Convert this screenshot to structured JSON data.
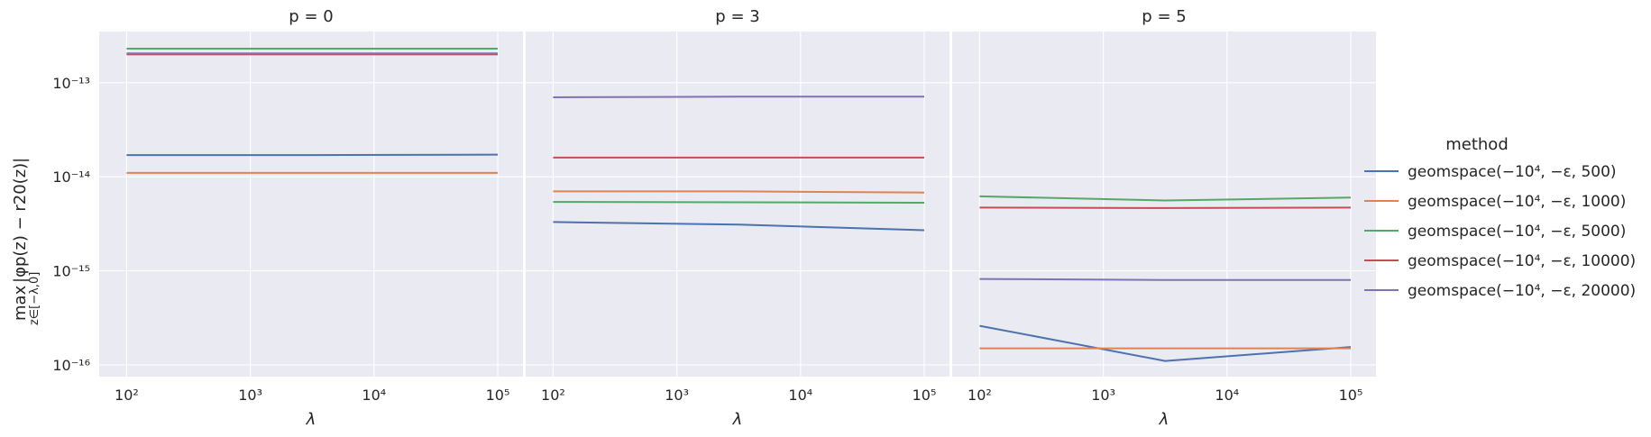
{
  "figure": {
    "ylabel_max": "max",
    "ylabel_sub": "z∈[−λ,0]",
    "ylabel_expr": "|φp(z) − r20(z)|",
    "xlabel": "λ"
  },
  "legend": {
    "title": "method",
    "placement": "right, outside panels",
    "entries": [
      {
        "label": "geomspace(−10⁴, −ε, 500)",
        "color": "#4c72b0"
      },
      {
        "label": "geomspace(−10⁴, −ε, 1000)",
        "color": "#dd8452"
      },
      {
        "label": "geomspace(−10⁴, −ε, 5000)",
        "color": "#55a868"
      },
      {
        "label": "geomspace(−10⁴, −ε, 10000)",
        "color": "#c44e52"
      },
      {
        "label": "geomspace(−10⁴, −ε, 20000)",
        "color": "#8172b3"
      }
    ]
  },
  "colors": {
    "panel_background": "#eaeaf2",
    "grid": "#ffffff",
    "text": "#262626"
  },
  "chart_data": [
    {
      "type": "line",
      "title": "p = 0",
      "xscale": "log",
      "yscale": "log",
      "xlim": [
        60,
        160000
      ],
      "ylim": [
        7.5e-17,
        3.5e-13
      ],
      "grid": true,
      "x": [
        100,
        3162,
        100000
      ],
      "xticks": [
        "10²",
        "10³",
        "10⁴",
        "10⁵"
      ],
      "yticks": [
        "10⁻¹⁶",
        "10⁻¹⁵",
        "10⁻¹⁴",
        "10⁻¹³"
      ],
      "series": [
        {
          "name": "geomspace(−10⁴, −ε, 500)",
          "values": [
            1.7e-14,
            1.7e-14,
            1.72e-14
          ]
        },
        {
          "name": "geomspace(−10⁴, −ε, 1000)",
          "values": [
            1.1e-14,
            1.1e-14,
            1.1e-14
          ]
        },
        {
          "name": "geomspace(−10⁴, −ε, 5000)",
          "values": [
            2.3e-13,
            2.3e-13,
            2.3e-13
          ]
        },
        {
          "name": "geomspace(−10⁴, −ε, 10000)",
          "values": [
            2e-13,
            2e-13,
            2e-13
          ]
        },
        {
          "name": "geomspace(−10⁴, −ε, 20000)",
          "values": [
            2.05e-13,
            2.05e-13,
            2.05e-13
          ]
        }
      ]
    },
    {
      "type": "line",
      "title": "p = 3",
      "xscale": "log",
      "yscale": "log",
      "xlim": [
        60,
        160000
      ],
      "ylim": [
        7.5e-17,
        3.5e-13
      ],
      "grid": true,
      "x": [
        100,
        3162,
        100000
      ],
      "xticks": [
        "10²",
        "10³",
        "10⁴",
        "10⁵"
      ],
      "yticks": [],
      "series": [
        {
          "name": "geomspace(−10⁴, −ε, 500)",
          "values": [
            3.3e-15,
            3.1e-15,
            2.7e-15
          ]
        },
        {
          "name": "geomspace(−10⁴, −ε, 1000)",
          "values": [
            7e-15,
            7e-15,
            6.8e-15
          ]
        },
        {
          "name": "geomspace(−10⁴, −ε, 5000)",
          "values": [
            5.4e-15,
            5.35e-15,
            5.3e-15
          ]
        },
        {
          "name": "geomspace(−10⁴, −ε, 10000)",
          "values": [
            1.6e-14,
            1.6e-14,
            1.6e-14
          ]
        },
        {
          "name": "geomspace(−10⁴, −ε, 20000)",
          "values": [
            7e-14,
            7.1e-14,
            7.1e-14
          ]
        }
      ]
    },
    {
      "type": "line",
      "title": "p = 5",
      "xscale": "log",
      "yscale": "log",
      "xlim": [
        60,
        160000
      ],
      "ylim": [
        7.5e-17,
        3.5e-13
      ],
      "grid": true,
      "x": [
        100,
        3162,
        100000
      ],
      "xticks": [
        "10²",
        "10³",
        "10⁴",
        "10⁵"
      ],
      "yticks": [],
      "series": [
        {
          "name": "geomspace(−10⁴, −ε, 500)",
          "values": [
            2.6e-16,
            1.1e-16,
            1.55e-16
          ]
        },
        {
          "name": "geomspace(−10⁴, −ε, 1000)",
          "values": [
            1.5e-16,
            1.5e-16,
            1.5e-16
          ]
        },
        {
          "name": "geomspace(−10⁴, −ε, 5000)",
          "values": [
            6.2e-15,
            5.6e-15,
            6e-15
          ]
        },
        {
          "name": "geomspace(−10⁴, −ε, 10000)",
          "values": [
            4.7e-15,
            4.65e-15,
            4.7e-15
          ]
        },
        {
          "name": "geomspace(−10⁴, −ε, 20000)",
          "values": [
            8.2e-16,
            8e-16,
            8e-16
          ]
        }
      ]
    }
  ]
}
